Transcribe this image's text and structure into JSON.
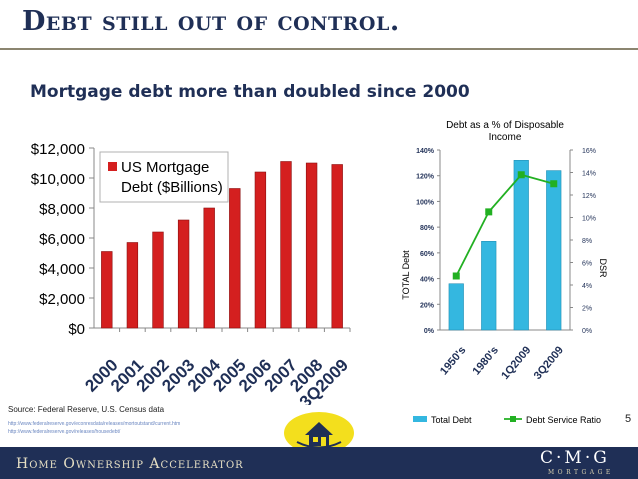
{
  "slide": {
    "title": "Debt still out of control.",
    "subtitle": "Mortgage debt more than doubled since 2000",
    "source": "Source: Federal Reserve, U.S. Census data",
    "links": [
      "http://www.federalreserve.gov/econresdata/releases/mortoutstand/current.htm",
      "http://www.federalreserve.gov/releases/housedebt/"
    ],
    "page_number": "5",
    "footer_text": "Home Ownership Accelerator",
    "logo_text": "C·M·G",
    "logo_sub": "MORTGAGE"
  },
  "colors": {
    "navy": "#1f2f56",
    "left_bar": "#d41f1f",
    "right_bar": "#34b7e0",
    "dsr_line": "#22b022"
  },
  "chart_data": [
    {
      "type": "bar",
      "title": "",
      "categories": [
        "2000",
        "2001",
        "2002",
        "2003",
        "2004",
        "2005",
        "2006",
        "2007",
        "2008",
        "3Q2009"
      ],
      "series": [
        {
          "name": "US Mortgage Debt ($Billions)",
          "values": [
            5100,
            5700,
            6400,
            7200,
            8000,
            9300,
            10400,
            11100,
            11000,
            10900
          ]
        }
      ],
      "ylim": [
        0,
        12000
      ],
      "yticks": [
        0,
        2000,
        4000,
        6000,
        8000,
        10000,
        12000
      ],
      "ytick_labels": [
        "$0",
        "$2,000",
        "$4,000",
        "$6,000",
        "$8,000",
        "$10,000",
        "$12,000"
      ],
      "xlabel": "",
      "ylabel": "",
      "legend": "top-left",
      "grid": false
    },
    {
      "type": "bar",
      "title": "Debt as a % of Disposable Income",
      "categories": [
        "1950's",
        "1980's",
        "1Q2009",
        "3Q2009"
      ],
      "series": [
        {
          "name": "Total Debt",
          "type": "bar",
          "axis": "left",
          "values": [
            36,
            69,
            132,
            124
          ]
        },
        {
          "name": "Debt Service Ratio",
          "type": "line",
          "axis": "right",
          "values": [
            4.8,
            10.5,
            13.8,
            13.0
          ]
        }
      ],
      "ylabel": "TOTAL Debt",
      "y2label": "DSR",
      "ylim": [
        0,
        140
      ],
      "yticks": [
        0,
        20,
        40,
        60,
        80,
        100,
        120,
        140
      ],
      "ytick_labels": [
        "0%",
        "20%",
        "40%",
        "60%",
        "80%",
        "100%",
        "120%",
        "140%"
      ],
      "y2lim": [
        0,
        16
      ],
      "y2ticks": [
        0,
        2,
        4,
        6,
        8,
        10,
        12,
        14,
        16
      ],
      "y2tick_labels": [
        "0%",
        "2%",
        "4%",
        "6%",
        "8%",
        "10%",
        "12%",
        "14%",
        "16%"
      ],
      "legend": "bottom",
      "grid": false
    }
  ]
}
